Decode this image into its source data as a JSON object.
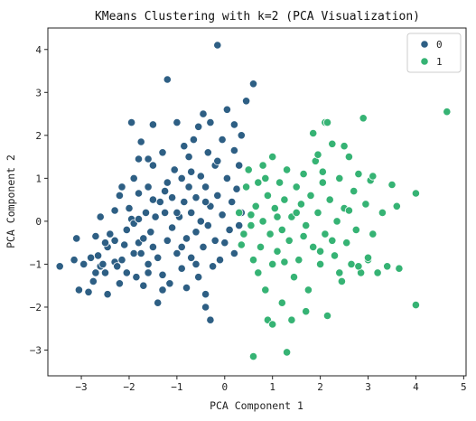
{
  "chart_data": {
    "type": "scatter",
    "title": "KMeans Clustering with k=2 (PCA Visualization)",
    "xlabel": "PCA Component 1",
    "ylabel": "PCA Component 2",
    "xlim": [
      -3.7,
      5.05
    ],
    "ylim": [
      -3.6,
      4.5
    ],
    "xticks": [
      -3,
      -2,
      -1,
      0,
      1,
      2,
      3,
      4,
      5
    ],
    "yticks": [
      -3,
      -2,
      -1,
      0,
      1,
      2,
      3,
      4
    ],
    "xtick_labels": [
      "−3",
      "−2",
      "−1",
      "0",
      "1",
      "2",
      "3",
      "4",
      "5"
    ],
    "ytick_labels": [
      "−3",
      "−2",
      "−1",
      "0",
      "1",
      "2",
      "3",
      "4"
    ],
    "grid": false,
    "legend_position": "top-right",
    "series": [
      {
        "name": "0",
        "color": "#2e5f84",
        "points": [
          [
            -3.45,
            -1.05
          ],
          [
            -3.15,
            -0.9
          ],
          [
            -3.1,
            -0.4
          ],
          [
            -3.05,
            -1.6
          ],
          [
            -2.95,
            -1.0
          ],
          [
            -2.8,
            -0.85
          ],
          [
            -2.75,
            -1.4
          ],
          [
            -2.7,
            -1.2
          ],
          [
            -2.7,
            -0.35
          ],
          [
            -2.65,
            -0.8
          ],
          [
            -2.6,
            -1.05
          ],
          [
            -2.55,
            -1.0
          ],
          [
            -2.5,
            -1.2
          ],
          [
            -2.45,
            -1.7
          ],
          [
            -2.45,
            -0.6
          ],
          [
            -2.4,
            -0.3
          ],
          [
            -2.3,
            0.25
          ],
          [
            -2.3,
            -0.95
          ],
          [
            -2.25,
            -1.05
          ],
          [
            -2.2,
            0.6
          ],
          [
            -2.2,
            -1.45
          ],
          [
            -2.15,
            -0.9
          ],
          [
            -2.1,
            -0.55
          ],
          [
            -2.05,
            -1.2
          ],
          [
            -2.05,
            -0.2
          ],
          [
            -2.0,
            0.3
          ],
          [
            -1.95,
            0.05
          ],
          [
            -1.9,
            1.0
          ],
          [
            -1.9,
            -0.75
          ],
          [
            -1.85,
            -1.3
          ],
          [
            -1.8,
            1.45
          ],
          [
            -1.8,
            0.65
          ],
          [
            -1.8,
            -0.5
          ],
          [
            -1.75,
            -0.75
          ],
          [
            -1.7,
            -1.5
          ],
          [
            -1.7,
            -0.4
          ],
          [
            -1.65,
            0.2
          ],
          [
            -1.6,
            0.8
          ],
          [
            -1.6,
            -1.0
          ],
          [
            -1.55,
            -0.25
          ],
          [
            -1.5,
            1.3
          ],
          [
            -1.5,
            0.5
          ],
          [
            -1.5,
            -0.6
          ],
          [
            -1.45,
            0.1
          ],
          [
            -1.4,
            -1.9
          ],
          [
            -1.4,
            -0.85
          ],
          [
            -1.35,
            0.45
          ],
          [
            -1.3,
            1.6
          ],
          [
            -1.3,
            -1.25
          ],
          [
            -1.25,
            0.2
          ],
          [
            -1.2,
            0.9
          ],
          [
            -1.2,
            -0.45
          ],
          [
            -1.15,
            -1.45
          ],
          [
            -1.1,
            0.55
          ],
          [
            -1.1,
            -0.15
          ],
          [
            -1.05,
            1.2
          ],
          [
            -1.0,
            2.3
          ],
          [
            -1.0,
            -0.75
          ],
          [
            -0.95,
            0.1
          ],
          [
            -0.9,
            1.0
          ],
          [
            -0.9,
            -1.1
          ],
          [
            -0.85,
            0.45
          ],
          [
            -0.8,
            -0.4
          ],
          [
            -0.8,
            -1.55
          ],
          [
            -0.75,
            1.5
          ],
          [
            -0.75,
            0.8
          ],
          [
            -0.7,
            0.2
          ],
          [
            -0.7,
            -0.85
          ],
          [
            -0.65,
            1.9
          ],
          [
            -0.6,
            0.55
          ],
          [
            -0.6,
            -0.25
          ],
          [
            -0.55,
            -1.3
          ],
          [
            -0.5,
            1.05
          ],
          [
            -0.5,
            0.0
          ],
          [
            -0.45,
            2.5
          ],
          [
            -0.45,
            -0.6
          ],
          [
            -0.4,
            0.8
          ],
          [
            -0.4,
            -1.7
          ],
          [
            -0.35,
            1.6
          ],
          [
            -0.35,
            -0.1
          ],
          [
            -0.3,
            2.3
          ],
          [
            -0.3,
            0.35
          ],
          [
            -0.25,
            -1.05
          ],
          [
            -0.2,
            1.3
          ],
          [
            -0.2,
            -0.45
          ],
          [
            -0.15,
            4.1
          ],
          [
            -0.15,
            0.6
          ],
          [
            -0.1,
            -0.9
          ],
          [
            -0.05,
            1.9
          ],
          [
            -0.05,
            0.15
          ],
          [
            0.0,
            -0.5
          ],
          [
            0.05,
            2.6
          ],
          [
            0.05,
            1.0
          ],
          [
            0.1,
            -0.2
          ],
          [
            0.15,
            0.45
          ],
          [
            0.2,
            1.65
          ],
          [
            0.2,
            -0.75
          ],
          [
            0.25,
            0.75
          ],
          [
            0.3,
            1.3
          ],
          [
            0.3,
            -0.1
          ],
          [
            0.35,
            0.2
          ],
          [
            0.35,
            2.0
          ],
          [
            -2.85,
            -1.65
          ],
          [
            -2.6,
            0.1
          ],
          [
            -1.75,
            1.85
          ],
          [
            -1.95,
            2.3
          ],
          [
            -1.5,
            2.25
          ],
          [
            -1.2,
            3.3
          ],
          [
            -2.3,
            -0.45
          ],
          [
            -2.5,
            -0.5
          ],
          [
            -1.9,
            -0.05
          ],
          [
            -1.6,
            -1.2
          ],
          [
            -0.9,
            -0.6
          ],
          [
            -0.55,
            2.2
          ],
          [
            -0.85,
            1.75
          ],
          [
            0.6,
            3.2
          ],
          [
            0.45,
            2.8
          ],
          [
            -0.4,
            -2.0
          ],
          [
            -0.3,
            -2.3
          ],
          [
            -1.6,
            1.45
          ],
          [
            -2.15,
            0.8
          ],
          [
            -1.3,
            -1.6
          ],
          [
            -0.7,
            1.15
          ],
          [
            -0.15,
            1.4
          ],
          [
            -1.0,
            0.2
          ],
          [
            -0.6,
            -1.0
          ],
          [
            -1.8,
            0.05
          ],
          [
            -0.4,
            0.45
          ],
          [
            0.2,
            2.25
          ],
          [
            -1.25,
            0.7
          ]
        ]
      },
      {
        "name": "1",
        "color": "#36b374",
        "points": [
          [
            0.3,
            0.2
          ],
          [
            0.35,
            -0.55
          ],
          [
            0.4,
            -0.3
          ],
          [
            0.45,
            0.8
          ],
          [
            0.5,
            1.2
          ],
          [
            0.55,
            -0.1
          ],
          [
            0.6,
            -0.9
          ],
          [
            0.65,
            0.35
          ],
          [
            0.7,
            -1.2
          ],
          [
            0.7,
            0.9
          ],
          [
            0.75,
            -0.6
          ],
          [
            0.8,
            0.0
          ],
          [
            0.85,
            1.0
          ],
          [
            0.85,
            -1.6
          ],
          [
            0.9,
            0.6
          ],
          [
            0.95,
            -0.3
          ],
          [
            1.0,
            -1.0
          ],
          [
            1.0,
            1.5
          ],
          [
            1.05,
            0.3
          ],
          [
            1.1,
            -0.7
          ],
          [
            1.15,
            0.9
          ],
          [
            1.2,
            -1.9
          ],
          [
            1.2,
            -0.2
          ],
          [
            1.25,
            0.5
          ],
          [
            1.3,
            1.2
          ],
          [
            1.35,
            -0.45
          ],
          [
            1.4,
            -2.3
          ],
          [
            1.4,
            0.1
          ],
          [
            1.45,
            -1.3
          ],
          [
            1.5,
            0.8
          ],
          [
            1.55,
            -0.9
          ],
          [
            1.6,
            0.4
          ],
          [
            1.65,
            1.1
          ],
          [
            1.7,
            -0.1
          ],
          [
            1.75,
            -1.6
          ],
          [
            1.8,
            0.6
          ],
          [
            1.85,
            -0.6
          ],
          [
            1.9,
            1.4
          ],
          [
            1.95,
            0.2
          ],
          [
            2.0,
            -1.0
          ],
          [
            2.05,
            0.9
          ],
          [
            2.1,
            2.3
          ],
          [
            2.1,
            -0.3
          ],
          [
            2.15,
            -2.2
          ],
          [
            2.2,
            0.5
          ],
          [
            2.25,
            1.8
          ],
          [
            2.3,
            -0.8
          ],
          [
            2.35,
            0.0
          ],
          [
            2.4,
            1.0
          ],
          [
            2.45,
            -1.4
          ],
          [
            2.5,
            0.3
          ],
          [
            2.55,
            -0.5
          ],
          [
            2.6,
            1.5
          ],
          [
            2.65,
            -1.0
          ],
          [
            2.7,
            0.7
          ],
          [
            2.75,
            -0.2
          ],
          [
            2.8,
            1.1
          ],
          [
            2.85,
            -1.2
          ],
          [
            2.9,
            2.4
          ],
          [
            2.95,
            0.4
          ],
          [
            3.0,
            -0.9
          ],
          [
            3.05,
            0.95
          ],
          [
            3.1,
            -0.3
          ],
          [
            3.2,
            -1.2
          ],
          [
            3.3,
            0.2
          ],
          [
            3.4,
            -1.05
          ],
          [
            3.5,
            0.85
          ],
          [
            3.6,
            0.35
          ],
          [
            3.65,
            -1.1
          ],
          [
            4.0,
            0.65
          ],
          [
            4.0,
            -1.95
          ],
          [
            4.65,
            2.55
          ],
          [
            0.9,
            -2.3
          ],
          [
            1.3,
            -3.05
          ],
          [
            0.6,
            -3.15
          ],
          [
            1.7,
            -2.1
          ],
          [
            2.15,
            2.3
          ],
          [
            1.95,
            1.55
          ],
          [
            2.5,
            1.75
          ],
          [
            2.0,
            -0.7
          ],
          [
            2.4,
            -1.2
          ],
          [
            1.0,
            -2.4
          ],
          [
            1.5,
            0.2
          ],
          [
            1.65,
            -0.35
          ],
          [
            2.8,
            -1.05
          ],
          [
            3.0,
            -0.85
          ],
          [
            2.25,
            -0.45
          ],
          [
            1.1,
            0.1
          ],
          [
            0.8,
            1.3
          ],
          [
            2.05,
            1.15
          ],
          [
            2.6,
            0.25
          ],
          [
            3.1,
            1.05
          ],
          [
            1.25,
            -0.95
          ],
          [
            0.55,
            0.15
          ],
          [
            1.85,
            2.05
          ]
        ]
      }
    ]
  }
}
